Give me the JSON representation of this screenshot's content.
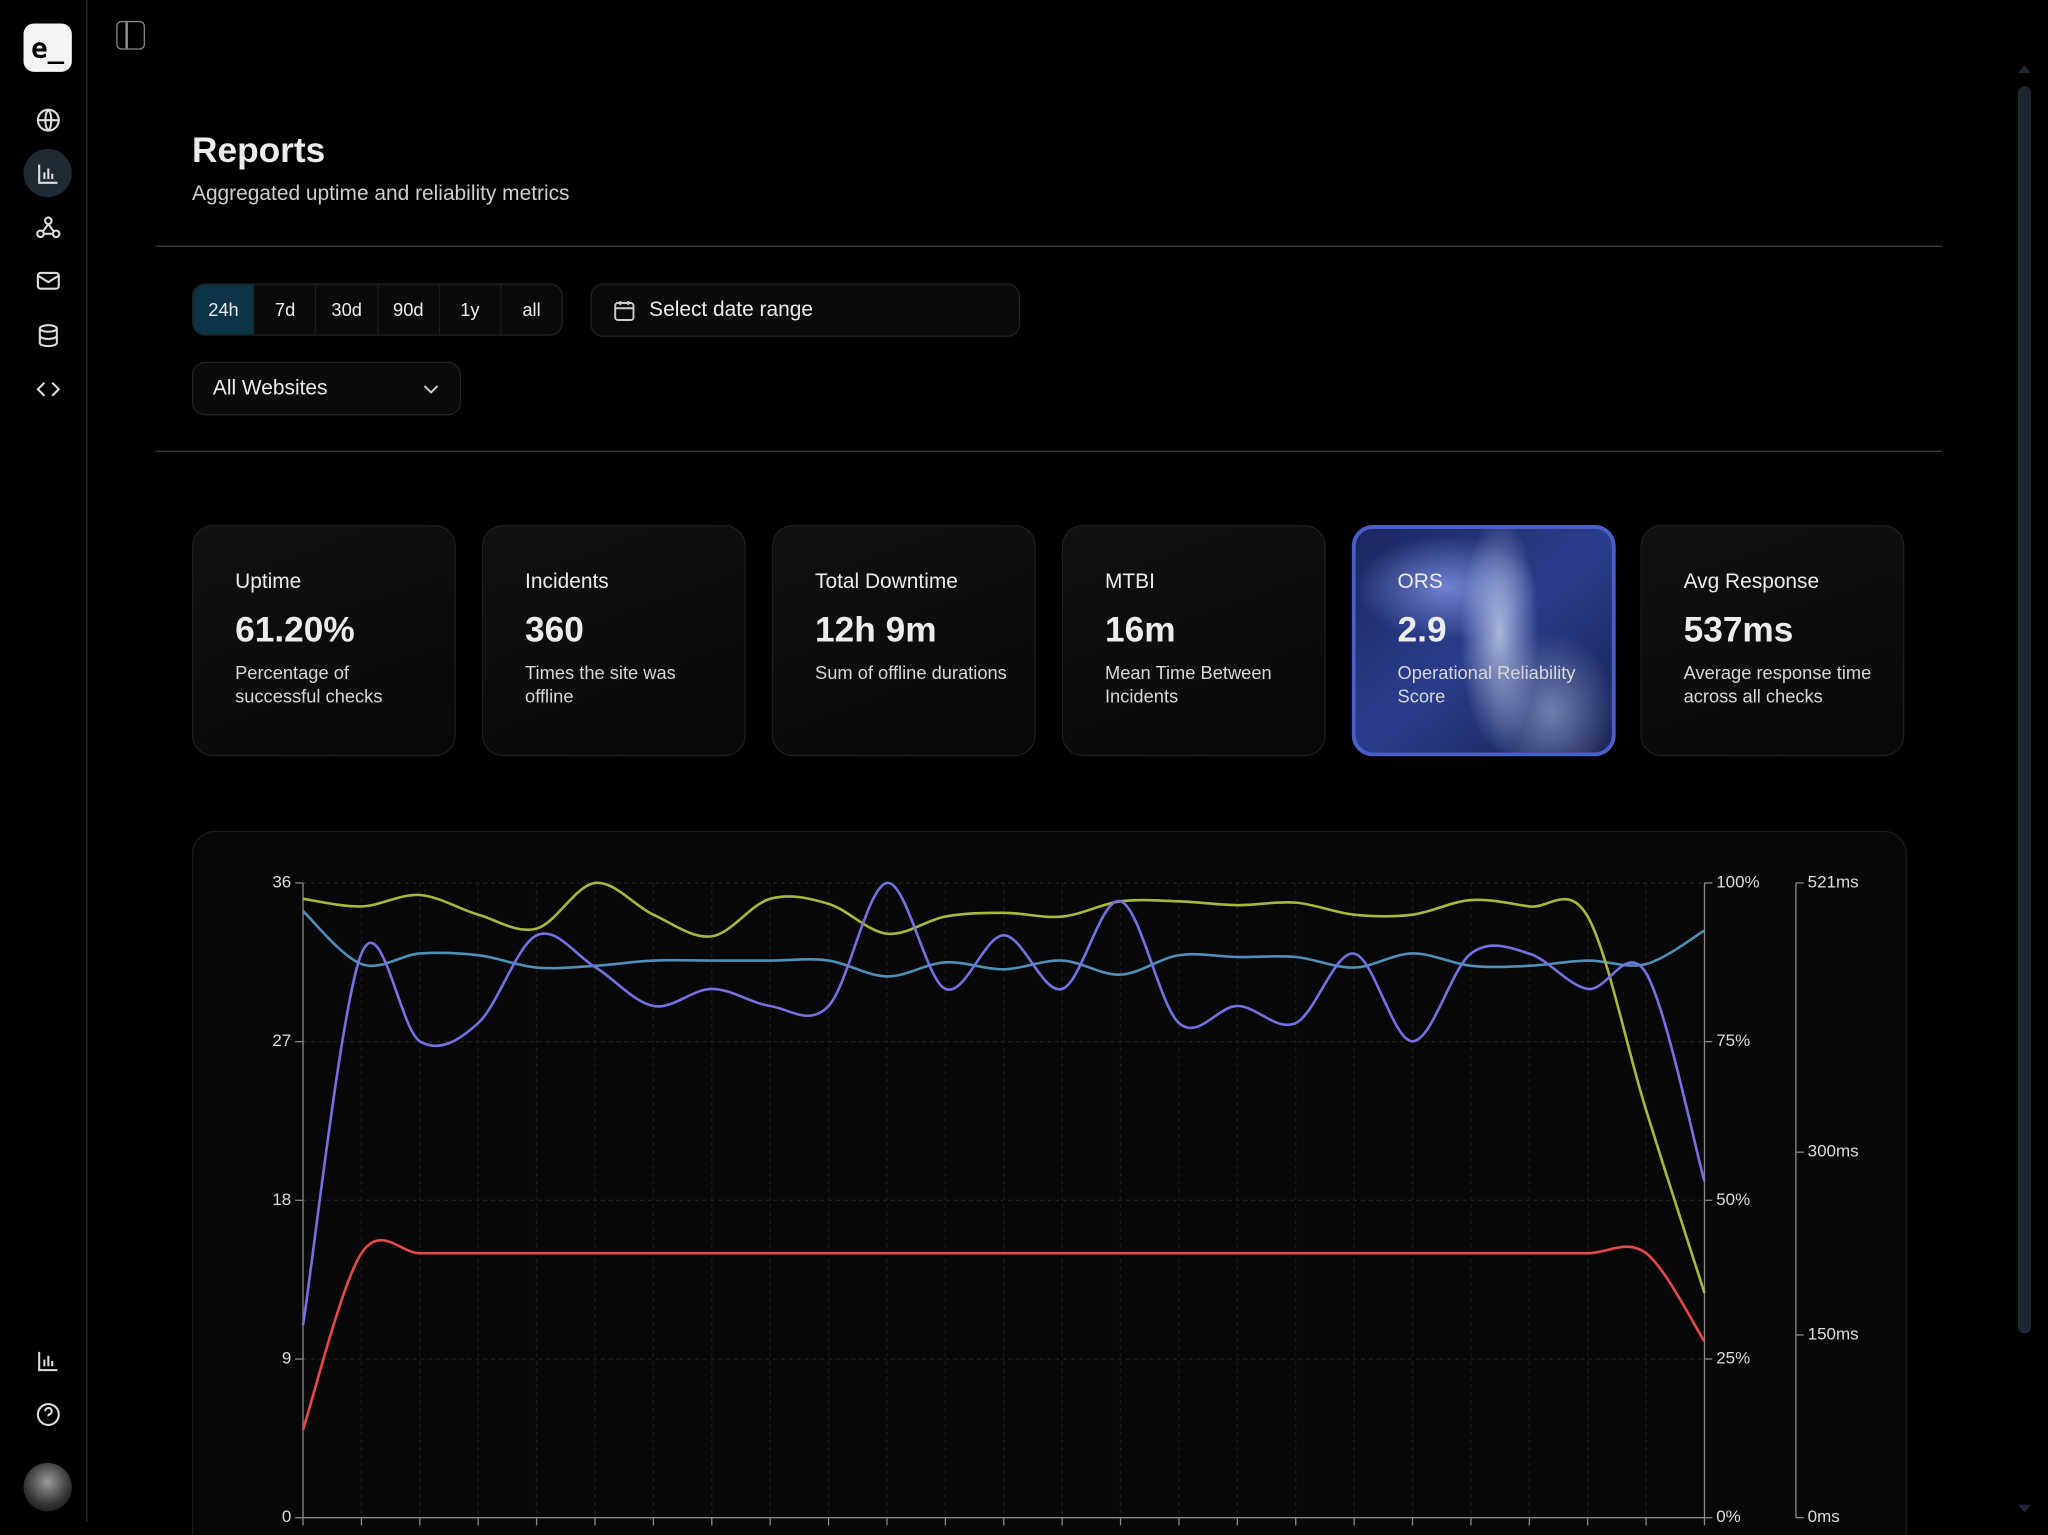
{
  "sidebar": {
    "logo": "e_"
  },
  "header": {
    "title": "Reports",
    "subtitle": "Aggregated uptime and reliability metrics"
  },
  "filters": {
    "ranges": [
      "24h",
      "7d",
      "30d",
      "90d",
      "1y",
      "all"
    ],
    "date_placeholder": "Select date range",
    "website": "All Websites"
  },
  "cards": [
    {
      "label": "Uptime",
      "value": "61.20%",
      "description": "Percentage of successful checks"
    },
    {
      "label": "Incidents",
      "value": "360",
      "description": "Times the site was offline"
    },
    {
      "label": "Total Downtime",
      "value": "12h 9m",
      "description": "Sum of offline durations"
    },
    {
      "label": "MTBI",
      "value": "16m",
      "description": "Mean Time Between Incidents"
    },
    {
      "label": "ORS",
      "value": "2.9",
      "description": "Operational Reliability Score"
    },
    {
      "label": "Avg Response",
      "value": "537ms",
      "description": "Average response time across all checks"
    }
  ],
  "chart_data": {
    "type": "line",
    "categories": [
      null,
      null,
      null,
      null,
      null,
      null,
      null,
      null,
      null,
      null,
      null,
      null,
      null,
      null,
      null,
      null,
      null,
      null,
      null,
      null,
      null,
      null,
      null,
      null,
      null
    ],
    "ylim": [
      0,
      36
    ],
    "yticks": [
      0,
      9,
      18,
      27,
      36
    ],
    "y2lim": [
      0,
      100
    ],
    "y2ticks": [
      {
        "value": 0,
        "label": "0%"
      },
      {
        "value": 25,
        "label": "25%"
      },
      {
        "value": 50,
        "label": "50%"
      },
      {
        "value": 75,
        "label": "75%"
      },
      {
        "value": 100,
        "label": "100%"
      }
    ],
    "y3lim": [
      0,
      521
    ],
    "y3ticks": [
      {
        "value": 0,
        "label": "0ms"
      },
      {
        "value": 150,
        "label": "150ms"
      },
      {
        "value": 300,
        "label": "300ms"
      },
      {
        "value": 521,
        "label": "521ms"
      }
    ],
    "grid": true,
    "series": [
      {
        "color": "#e5484d",
        "axis": "y",
        "values": [
          5,
          15,
          15,
          15,
          15,
          15,
          15,
          15,
          15,
          15,
          15,
          15,
          15,
          15,
          15,
          15,
          15,
          15,
          15,
          15,
          15,
          15,
          15,
          15,
          10
        ]
      },
      {
        "color": "#4f8fb8",
        "axis": "y",
        "values": [
          34.4,
          31.4,
          32,
          31.9,
          31.2,
          31.3,
          31.6,
          31.6,
          31.6,
          31.6,
          30.7,
          31.5,
          31.1,
          31.6,
          30.8,
          31.9,
          31.8,
          31.8,
          31.2,
          32,
          31.3,
          31.3,
          31.6,
          31.4,
          33.3
        ]
      },
      {
        "color": "#a9b83c",
        "axis": "y2",
        "values": [
          97.5,
          96.3,
          98.1,
          95,
          92.8,
          100,
          95,
          91.6,
          97.5,
          96.7,
          92,
          94.7,
          95.3,
          94.7,
          97.1,
          97.1,
          96.5,
          96.9,
          95,
          95,
          97.3,
          96.3,
          94.7,
          64.2,
          35.4
        ]
      },
      {
        "color": "#7272e2",
        "axis": "y3",
        "values": [
          158,
          463,
          391,
          406,
          478,
          452,
          420,
          434,
          420,
          420,
          521,
          434,
          478,
          434,
          506,
          406,
          420,
          406,
          463,
          391,
          463,
          463,
          434,
          447,
          276
        ]
      }
    ]
  }
}
